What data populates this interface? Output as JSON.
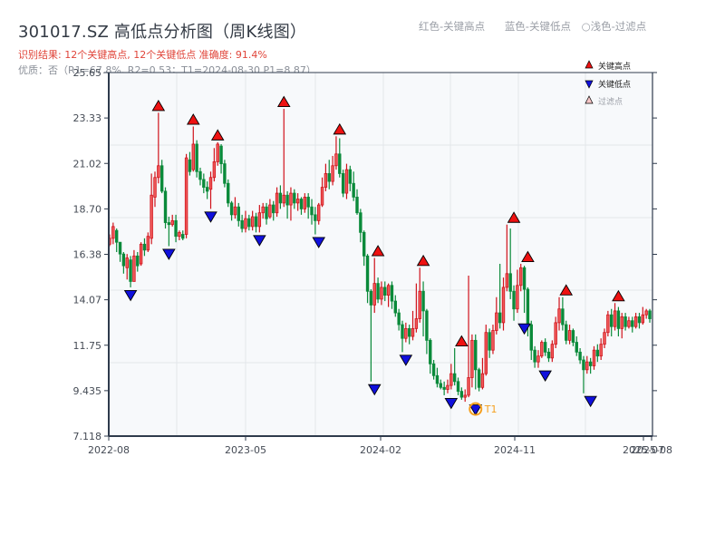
{
  "header": {
    "title": "301017.SZ 高低点分析图（周K线图）",
    "result_line": "识别结果: 12个关键高点, 12个关键低点  准确度: 91.4%",
    "quality_line": "优质：否（R1=67.8%, R2=0.53；T1=2024-08-30 P1=8.87）",
    "legend_text": [
      "红色-关键高点",
      "蓝色-关键低点",
      "○浅色-过滤点"
    ]
  },
  "colors": {
    "up": "#d0121b",
    "up_fill": "#f05a5a",
    "down": "#0a8a3a",
    "high_marker": "#ee1111",
    "low_marker": "#1010dd",
    "filtered_marker": "#f7c6c6",
    "t1_ring": "#f5a020",
    "axis": "#2f3b4c",
    "grid": "#e3e6ea",
    "plot_bg": "#f7f9fb"
  },
  "chart_data": {
    "type": "candlestick",
    "title": "301017.SZ 高低点分析图（周K线图）",
    "xlabel": "",
    "ylabel": "",
    "ylim": [
      7.118,
      25.65
    ],
    "yticks": [
      "7.118",
      "9.435",
      "11.75",
      "14.07",
      "16.38",
      "18.70",
      "21.02",
      "23.33",
      "25.65"
    ],
    "xticks": [
      "2022-08",
      "2023-05",
      "2024-02",
      "2024-11",
      "2025-07",
      "2025-08"
    ],
    "xrange": [
      "2022-08",
      "2025-08"
    ],
    "legend": [
      {
        "label": "关键高点",
        "marker": "red-up-triangle"
      },
      {
        "label": "关键低点",
        "marker": "blue-down-triangle"
      },
      {
        "label": "过滤点",
        "marker": "light-up-triangle"
      }
    ],
    "annotations": [
      {
        "label": "T1",
        "date": "2024-08-30",
        "price": 8.87
      }
    ],
    "key_highs": [
      {
        "week": 14,
        "price": 23.6
      },
      {
        "week": 24,
        "price": 22.9
      },
      {
        "week": 31,
        "price": 22.1
      },
      {
        "week": 50,
        "price": 23.8
      },
      {
        "week": 66,
        "price": 22.4
      },
      {
        "week": 77,
        "price": 16.2
      },
      {
        "week": 90,
        "price": 15.7
      },
      {
        "week": 101,
        "price": 11.6
      },
      {
        "week": 116,
        "price": 17.9
      },
      {
        "week": 120,
        "price": 15.9
      },
      {
        "week": 131,
        "price": 14.2
      },
      {
        "week": 146,
        "price": 13.9
      }
    ],
    "key_lows": [
      {
        "week": 6,
        "price": 14.7
      },
      {
        "week": 17,
        "price": 16.8
      },
      {
        "week": 29,
        "price": 18.7
      },
      {
        "week": 43,
        "price": 17.5
      },
      {
        "week": 60,
        "price": 17.4
      },
      {
        "week": 76,
        "price": 9.9
      },
      {
        "week": 85,
        "price": 11.4
      },
      {
        "week": 98,
        "price": 9.2
      },
      {
        "week": 105,
        "price": 8.87
      },
      {
        "week": 119,
        "price": 13.0
      },
      {
        "week": 125,
        "price": 10.6
      },
      {
        "week": 138,
        "price": 9.3
      }
    ],
    "ohlc_note": "weekly candles [open, close, high, low], approximated from pixels",
    "candles": [
      [
        16.9,
        17.2,
        17.4,
        16.8
      ],
      [
        17.2,
        17.8,
        18.0,
        16.9
      ],
      [
        17.6,
        17.0,
        17.7,
        16.5
      ],
      [
        17.0,
        16.4,
        17.0,
        16.0
      ],
      [
        16.4,
        15.8,
        16.5,
        15.4
      ],
      [
        15.7,
        16.2,
        16.4,
        15.1
      ],
      [
        16.1,
        15.0,
        16.3,
        14.7
      ],
      [
        15.0,
        16.3,
        16.6,
        15.0
      ],
      [
        16.3,
        15.8,
        16.5,
        15.5
      ],
      [
        15.9,
        16.9,
        17.0,
        15.8
      ],
      [
        16.9,
        16.6,
        17.2,
        16.3
      ],
      [
        16.6,
        17.3,
        17.5,
        16.5
      ],
      [
        17.2,
        19.4,
        20.5,
        16.9
      ],
      [
        19.3,
        20.3,
        20.6,
        18.8
      ],
      [
        20.3,
        20.9,
        23.6,
        20.0
      ],
      [
        20.9,
        19.6,
        21.2,
        19.5
      ],
      [
        19.6,
        18.0,
        19.8,
        17.7
      ],
      [
        18.0,
        17.9,
        18.3,
        16.8
      ],
      [
        17.9,
        18.1,
        18.4,
        17.8
      ],
      [
        18.1,
        17.3,
        18.4,
        17.0
      ],
      [
        17.3,
        17.5,
        17.6,
        17.1
      ],
      [
        17.4,
        17.2,
        17.6,
        17.1
      ],
      [
        17.4,
        21.3,
        21.5,
        17.2
      ],
      [
        21.2,
        20.6,
        21.6,
        20.4
      ],
      [
        20.7,
        22.0,
        22.9,
        20.6
      ],
      [
        22.0,
        20.6,
        22.2,
        20.3
      ],
      [
        20.6,
        20.2,
        20.8,
        19.9
      ],
      [
        20.2,
        19.8,
        20.5,
        19.5
      ],
      [
        19.8,
        19.6,
        20.1,
        19.2
      ],
      [
        19.7,
        20.3,
        20.6,
        18.7
      ],
      [
        20.3,
        21.1,
        21.8,
        20.1
      ],
      [
        21.1,
        22.0,
        22.1,
        20.9
      ],
      [
        21.9,
        21.0,
        22.0,
        20.5
      ],
      [
        21.0,
        20.0,
        21.2,
        19.8
      ],
      [
        20.0,
        19.0,
        20.2,
        18.8
      ],
      [
        19.0,
        18.4,
        19.1,
        18.1
      ],
      [
        18.4,
        18.8,
        19.3,
        18.2
      ],
      [
        18.8,
        18.1,
        19.0,
        17.8
      ],
      [
        18.1,
        17.7,
        18.4,
        17.5
      ],
      [
        17.7,
        18.2,
        18.6,
        17.5
      ],
      [
        18.2,
        17.8,
        18.4,
        17.6
      ],
      [
        17.8,
        18.3,
        18.6,
        17.6
      ],
      [
        18.3,
        17.8,
        18.5,
        17.5
      ],
      [
        17.8,
        18.5,
        18.9,
        17.5
      ],
      [
        18.5,
        18.8,
        19.0,
        18.2
      ],
      [
        18.8,
        18.2,
        19.0,
        17.9
      ],
      [
        18.3,
        18.9,
        19.2,
        18.2
      ],
      [
        18.9,
        18.5,
        19.1,
        18.1
      ],
      [
        18.5,
        19.5,
        19.8,
        18.3
      ],
      [
        19.5,
        19.0,
        19.9,
        18.7
      ],
      [
        19.0,
        19.4,
        23.8,
        18.8
      ],
      [
        19.4,
        18.9,
        19.6,
        18.2
      ],
      [
        18.9,
        19.5,
        19.8,
        18.1
      ],
      [
        19.5,
        19.0,
        19.7,
        18.7
      ],
      [
        19.0,
        19.2,
        19.5,
        18.6
      ],
      [
        19.2,
        18.7,
        19.3,
        18.4
      ],
      [
        18.7,
        19.3,
        19.5,
        18.5
      ],
      [
        19.3,
        18.8,
        19.5,
        18.2
      ],
      [
        18.8,
        18.4,
        19.2,
        17.9
      ],
      [
        18.4,
        18.1,
        18.8,
        17.4
      ],
      [
        18.1,
        18.9,
        19.0,
        17.9
      ],
      [
        18.9,
        19.8,
        20.3,
        18.8
      ],
      [
        19.8,
        20.5,
        21.0,
        19.6
      ],
      [
        20.5,
        20.1,
        21.2,
        19.7
      ],
      [
        20.1,
        20.9,
        21.4,
        19.9
      ],
      [
        20.9,
        21.5,
        22.4,
        20.7
      ],
      [
        21.5,
        20.5,
        22.3,
        20.3
      ],
      [
        20.5,
        19.5,
        20.7,
        19.3
      ],
      [
        19.5,
        20.7,
        21.0,
        19.2
      ],
      [
        20.7,
        20.0,
        20.9,
        19.6
      ],
      [
        20.0,
        19.3,
        20.6,
        19.1
      ],
      [
        19.3,
        18.5,
        19.7,
        18.4
      ],
      [
        18.5,
        17.5,
        18.7,
        17.0
      ],
      [
        17.5,
        16.3,
        17.6,
        15.8
      ],
      [
        16.3,
        14.5,
        16.4,
        13.9
      ],
      [
        14.5,
        13.8,
        14.6,
        9.9
      ],
      [
        13.8,
        14.9,
        16.2,
        13.4
      ],
      [
        14.9,
        14.1,
        15.2,
        13.9
      ],
      [
        14.1,
        14.7,
        15.0,
        13.8
      ],
      [
        14.7,
        14.3,
        15.0,
        14.0
      ],
      [
        14.3,
        14.8,
        14.9,
        13.7
      ],
      [
        14.8,
        14.0,
        15.0,
        13.6
      ],
      [
        14.0,
        13.4,
        14.3,
        13.2
      ],
      [
        13.4,
        12.8,
        13.6,
        12.5
      ],
      [
        12.8,
        12.1,
        13.0,
        11.4
      ],
      [
        12.1,
        12.6,
        12.9,
        11.9
      ],
      [
        12.6,
        12.2,
        12.8,
        11.8
      ],
      [
        12.2,
        12.6,
        13.5,
        12.0
      ],
      [
        12.6,
        13.1,
        14.9,
        12.4
      ],
      [
        13.1,
        14.5,
        15.7,
        12.9
      ],
      [
        14.5,
        13.5,
        15.0,
        12.2
      ],
      [
        13.5,
        12.0,
        13.6,
        11.3
      ],
      [
        12.0,
        10.8,
        12.1,
        10.3
      ],
      [
        10.8,
        10.2,
        11.0,
        10.0
      ],
      [
        10.2,
        9.8,
        10.6,
        9.6
      ],
      [
        9.8,
        9.6,
        10.0,
        9.5
      ],
      [
        9.6,
        9.5,
        9.9,
        9.2
      ],
      [
        9.5,
        9.7,
        10.0,
        9.3
      ],
      [
        9.7,
        10.3,
        10.8,
        9.5
      ],
      [
        10.3,
        9.9,
        11.6,
        9.7
      ],
      [
        9.9,
        9.4,
        10.1,
        9.2
      ],
      [
        9.4,
        9.1,
        9.6,
        8.97
      ],
      [
        9.1,
        9.2,
        9.5,
        8.87
      ],
      [
        9.2,
        10.1,
        15.3,
        9.1
      ],
      [
        10.1,
        12.0,
        12.3,
        9.6
      ],
      [
        12.0,
        10.5,
        12.3,
        9.5
      ],
      [
        10.5,
        9.6,
        10.6,
        9.4
      ],
      [
        9.6,
        10.3,
        11.1,
        9.5
      ],
      [
        10.3,
        12.4,
        12.8,
        10.2
      ],
      [
        12.4,
        11.5,
        12.6,
        11.1
      ],
      [
        11.5,
        12.5,
        12.8,
        11.3
      ],
      [
        12.5,
        13.4,
        14.2,
        12.3
      ],
      [
        13.4,
        12.9,
        15.9,
        12.6
      ],
      [
        12.9,
        14.7,
        15.2,
        12.5
      ],
      [
        14.7,
        15.4,
        17.9,
        14.5
      ],
      [
        15.4,
        14.5,
        17.7,
        14.1
      ],
      [
        14.5,
        13.6,
        14.8,
        13.0
      ],
      [
        13.6,
        14.8,
        15.6,
        13.4
      ],
      [
        14.8,
        15.7,
        15.9,
        14.5
      ],
      [
        15.7,
        14.6,
        15.8,
        13.4
      ],
      [
        14.6,
        12.8,
        14.7,
        12.2
      ],
      [
        12.8,
        11.5,
        13.0,
        11.0
      ],
      [
        11.5,
        10.9,
        11.7,
        10.6
      ],
      [
        10.9,
        11.2,
        11.5,
        10.6
      ],
      [
        11.2,
        11.9,
        12.0,
        11.1
      ],
      [
        11.9,
        11.4,
        12.1,
        11.2
      ],
      [
        11.4,
        11.1,
        11.6,
        10.9
      ],
      [
        11.1,
        11.8,
        12.0,
        10.9
      ],
      [
        11.8,
        12.9,
        13.2,
        11.6
      ],
      [
        12.9,
        13.6,
        14.2,
        12.5
      ],
      [
        13.6,
        12.8,
        14.2,
        12.5
      ],
      [
        12.8,
        12.0,
        13.0,
        11.8
      ],
      [
        12.0,
        12.5,
        12.8,
        11.8
      ],
      [
        12.5,
        11.9,
        12.6,
        11.7
      ],
      [
        11.9,
        11.4,
        12.2,
        11.2
      ],
      [
        11.4,
        11.0,
        11.6,
        10.8
      ],
      [
        11.0,
        10.5,
        11.2,
        9.3
      ],
      [
        10.5,
        10.9,
        11.2,
        10.3
      ],
      [
        10.9,
        10.7,
        11.1,
        10.3
      ],
      [
        10.7,
        11.5,
        11.7,
        10.5
      ],
      [
        11.5,
        11.2,
        11.8,
        10.9
      ],
      [
        11.2,
        11.8,
        12.1,
        11.0
      ],
      [
        11.8,
        12.4,
        12.6,
        11.6
      ],
      [
        12.4,
        13.3,
        13.5,
        12.2
      ],
      [
        13.3,
        12.7,
        13.6,
        12.2
      ],
      [
        12.7,
        13.5,
        13.9,
        12.5
      ],
      [
        13.5,
        12.6,
        13.7,
        12.2
      ],
      [
        12.6,
        13.2,
        13.4,
        12.1
      ],
      [
        13.2,
        12.7,
        13.4,
        12.5
      ],
      [
        12.7,
        13.0,
        13.2,
        12.6
      ],
      [
        13.0,
        12.7,
        13.2,
        12.4
      ],
      [
        12.7,
        13.2,
        13.4,
        12.6
      ],
      [
        13.2,
        12.9,
        13.4,
        12.6
      ],
      [
        12.9,
        13.3,
        13.7,
        12.8
      ],
      [
        13.3,
        13.5,
        13.6,
        13.1
      ],
      [
        13.5,
        13.1,
        13.6,
        12.9
      ]
    ]
  }
}
